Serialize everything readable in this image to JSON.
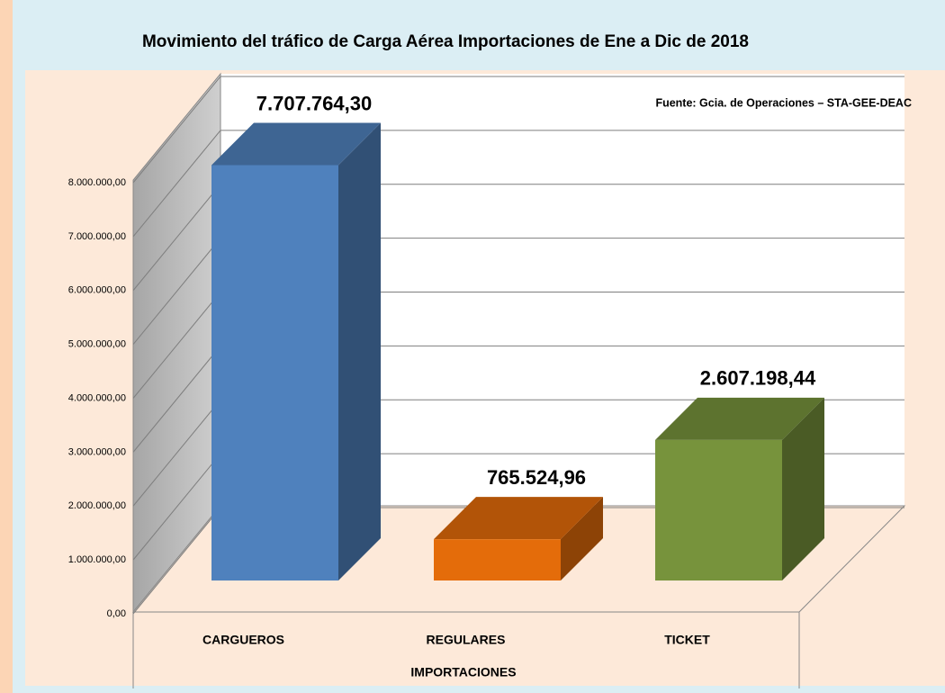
{
  "chart_data": {
    "type": "bar3d",
    "title": "Movimiento del tráfico de Carga Aérea Importaciones  de Ene a Dic de 2018",
    "source": "Fuente: Gcia. de Operaciones – STA-GEE-DEAC",
    "x_label": "IMPORTACIONES",
    "categories": [
      "CARGUEROS",
      "REGULARES",
      "TICKET"
    ],
    "values": [
      7707764.3,
      765524.96,
      2607198.44
    ],
    "value_labels": [
      "7.707.764,30",
      "765.524,96",
      "2.607.198,44"
    ],
    "colors": [
      "#4f81bd",
      "#e46c0a",
      "#77933c"
    ],
    "ylim": [
      0,
      8000000
    ],
    "yticks": [
      {
        "value": 0,
        "label": "0,00"
      },
      {
        "value": 1000000,
        "label": "1.000.000,00"
      },
      {
        "value": 2000000,
        "label": "2.000.000,00"
      },
      {
        "value": 3000000,
        "label": "3.000.000,00"
      },
      {
        "value": 4000000,
        "label": "4.000.000,00"
      },
      {
        "value": 5000000,
        "label": "5.000.000,00"
      },
      {
        "value": 6000000,
        "label": "6.000.000,00"
      },
      {
        "value": 7000000,
        "label": "7.000.000,00"
      },
      {
        "value": 8000000,
        "label": "8.000.000,00"
      }
    ],
    "grid": true
  }
}
